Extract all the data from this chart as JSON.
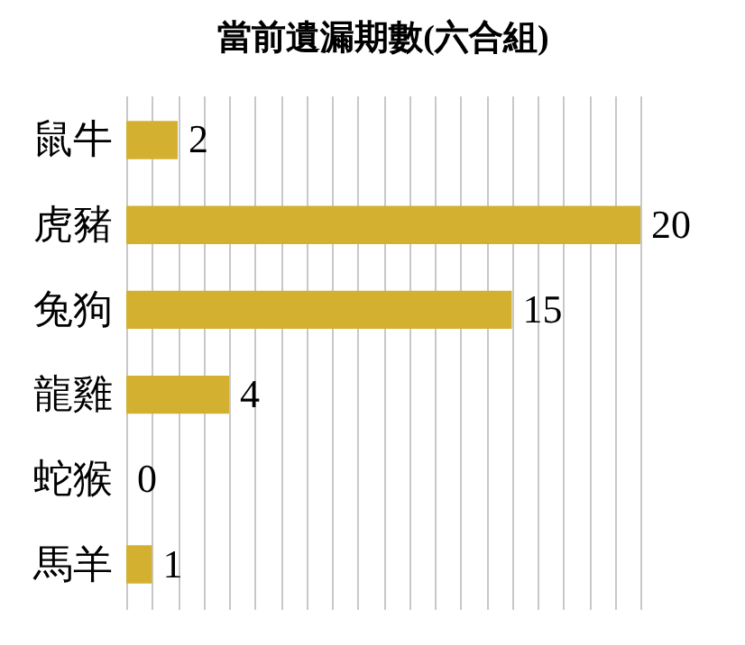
{
  "chart_data": {
    "type": "bar",
    "title": "當前遺漏期數(六合組)",
    "orientation": "horizontal",
    "categories": [
      "鼠牛",
      "虎豬",
      "兔狗",
      "龍雞",
      "蛇猴",
      "馬羊"
    ],
    "values": [
      2,
      20,
      15,
      4,
      0,
      1
    ],
    "color": "#d4b030",
    "data_labels": true,
    "grid": "x",
    "tick_labels": "y"
  }
}
